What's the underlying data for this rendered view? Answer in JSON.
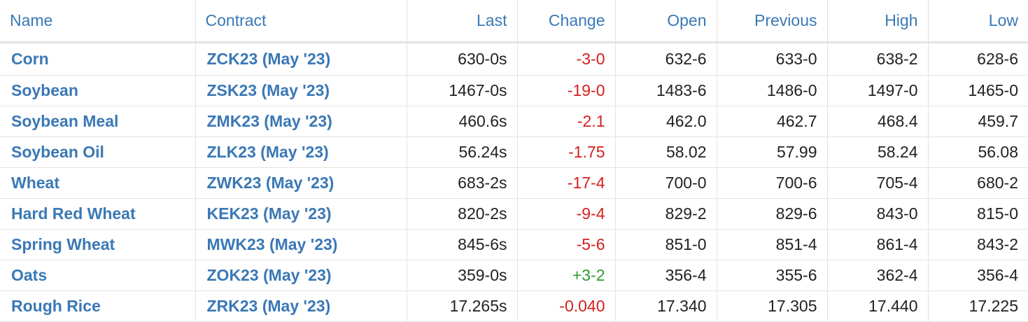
{
  "columns": {
    "name": "Name",
    "contract": "Contract",
    "last": "Last",
    "change": "Change",
    "open": "Open",
    "previous": "Previous",
    "high": "High",
    "low": "Low"
  },
  "colors": {
    "header_text": "#3a78b5",
    "link_text": "#3a78b5",
    "negative_change": "#d42020",
    "positive_change": "#2f9a2f",
    "border": "#e3e3e3"
  },
  "rows": [
    {
      "name": "Corn",
      "contract": "ZCK23 (May '23)",
      "last": "630-0s",
      "change": "-3-0",
      "direction": "down",
      "open": "632-6",
      "previous": "633-0",
      "high": "638-2",
      "low": "628-6"
    },
    {
      "name": "Soybean",
      "contract": "ZSK23 (May '23)",
      "last": "1467-0s",
      "change": "-19-0",
      "direction": "down",
      "open": "1483-6",
      "previous": "1486-0",
      "high": "1497-0",
      "low": "1465-0"
    },
    {
      "name": "Soybean Meal",
      "contract": "ZMK23 (May '23)",
      "last": "460.6s",
      "change": "-2.1",
      "direction": "down",
      "open": "462.0",
      "previous": "462.7",
      "high": "468.4",
      "low": "459.7"
    },
    {
      "name": "Soybean Oil",
      "contract": "ZLK23 (May '23)",
      "last": "56.24s",
      "change": "-1.75",
      "direction": "down",
      "open": "58.02",
      "previous": "57.99",
      "high": "58.24",
      "low": "56.08"
    },
    {
      "name": "Wheat",
      "contract": "ZWK23 (May '23)",
      "last": "683-2s",
      "change": "-17-4",
      "direction": "down",
      "open": "700-0",
      "previous": "700-6",
      "high": "705-4",
      "low": "680-2"
    },
    {
      "name": "Hard Red Wheat",
      "contract": "KEK23 (May '23)",
      "last": "820-2s",
      "change": "-9-4",
      "direction": "down",
      "open": "829-2",
      "previous": "829-6",
      "high": "843-0",
      "low": "815-0"
    },
    {
      "name": "Spring Wheat",
      "contract": "MWK23 (May '23)",
      "last": "845-6s",
      "change": "-5-6",
      "direction": "down",
      "open": "851-0",
      "previous": "851-4",
      "high": "861-4",
      "low": "843-2"
    },
    {
      "name": "Oats",
      "contract": "ZOK23 (May '23)",
      "last": "359-0s",
      "change": "+3-2",
      "direction": "up",
      "open": "356-4",
      "previous": "355-6",
      "high": "362-4",
      "low": "356-4"
    },
    {
      "name": "Rough Rice",
      "contract": "ZRK23 (May '23)",
      "last": "17.265s",
      "change": "-0.040",
      "direction": "down",
      "open": "17.340",
      "previous": "17.305",
      "high": "17.440",
      "low": "17.225"
    }
  ]
}
